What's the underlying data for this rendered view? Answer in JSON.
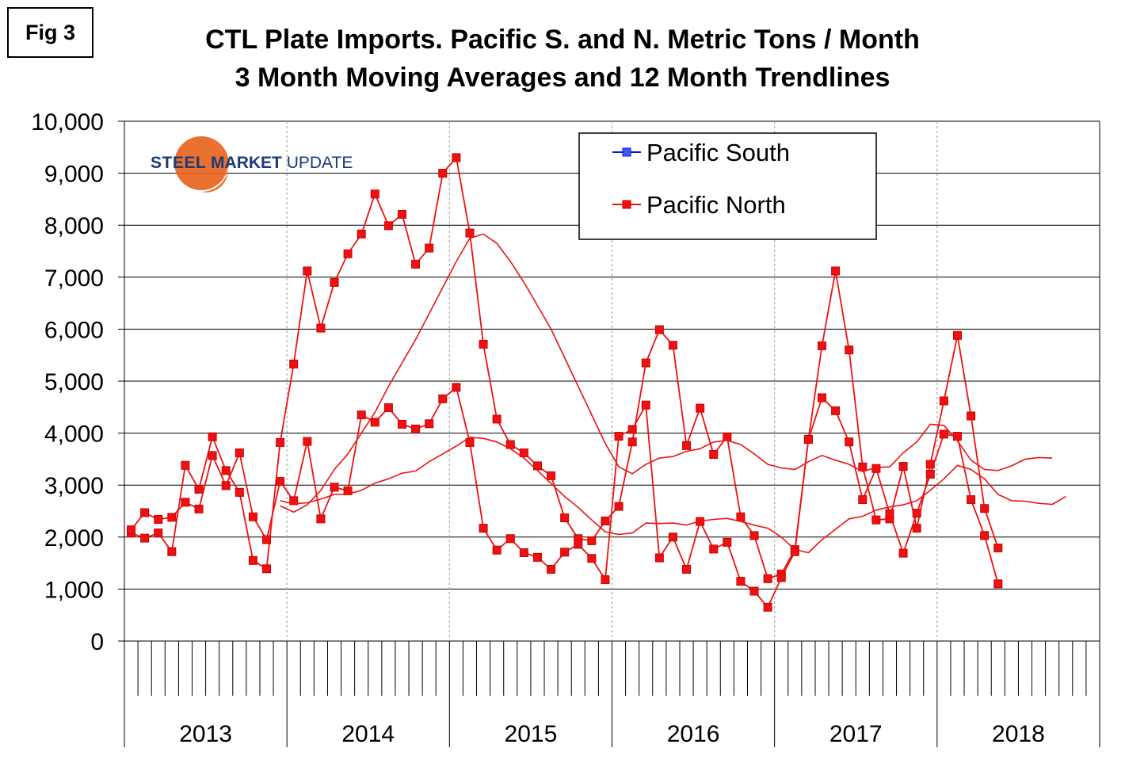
{
  "fig_label": "Fig 3",
  "title_line1": "CTL Plate Imports. Pacific S. and N. Metric Tons / Month",
  "title_line2": "3 Month Moving Averages and 12 Month Trendlines",
  "logo": {
    "word1": "STEEL",
    "word2": "MARKET",
    "word3": "UPDATE"
  },
  "colors": {
    "south": "#1010e0",
    "north": "#ee1111",
    "south_marker": "#3b5bf0",
    "grid": "#000000"
  },
  "chart_data": {
    "type": "line",
    "title": "CTL Plate Imports. Pacific S. and N. Metric Tons / Month - 3 Month Moving Averages and 12 Month Trendlines",
    "xlabel": "",
    "ylabel": "",
    "ylim": [
      0,
      10000
    ],
    "y_ticks": [
      0,
      1000,
      2000,
      3000,
      4000,
      5000,
      6000,
      7000,
      8000,
      9000,
      10000
    ],
    "y_tick_labels": [
      "0",
      "1,000",
      "2,000",
      "3,000",
      "4,000",
      "5,000",
      "6,000",
      "7,000",
      "8,000",
      "9,000",
      "10,000"
    ],
    "years": [
      "2013",
      "2014",
      "2015",
      "2016",
      "2017",
      "2018"
    ],
    "months_per_year": 12,
    "total_months": 72,
    "legend": [
      "Pacific South",
      "Pacific North"
    ],
    "series": [
      {
        "name": "Pacific South",
        "type": "3 month moving average",
        "start_month": 1,
        "values": [
          2080,
          1980,
          2080,
          1720,
          3380,
          2920,
          3930,
          3280,
          2860,
          1550,
          1390,
          3820,
          5330,
          7120,
          6020,
          6900,
          7450,
          7830,
          8600,
          7990,
          8210,
          7250,
          7560,
          9000,
          9300,
          7850,
          5710,
          4270,
          3780,
          3620,
          3370,
          3180,
          2370,
          1970,
          1930,
          2310,
          2590,
          3830,
          5350,
          5990,
          5690,
          3760,
          4480,
          3590,
          3930,
          2390,
          2030,
          1200,
          1290,
          1760,
          3880,
          5680,
          7120,
          5600,
          3350,
          2330,
          2350,
          3360,
          2170,
          3400,
          4620,
          5880,
          4330,
          2550,
          1790
        ]
      },
      {
        "name": "Pacific North",
        "type": "3 month moving average",
        "start_month": 1,
        "values": [
          2140,
          2470,
          2340,
          2380,
          2670,
          2540,
          3570,
          2990,
          3620,
          2390,
          1950,
          3070,
          2700,
          3840,
          2350,
          2960,
          2890,
          4350,
          4210,
          4490,
          4170,
          4080,
          4180,
          4660,
          4880,
          3820,
          2170,
          1750,
          1970,
          1700,
          1610,
          1380,
          1710,
          1860,
          1590,
          1180,
          3940,
          4070,
          4540,
          1600,
          2000,
          1380,
          2300,
          1770,
          1900,
          1150,
          960,
          650,
          1220,
          1720,
          3880,
          4680,
          4430,
          3830,
          2720,
          3320,
          2450,
          1690,
          2460,
          3210,
          3980,
          3940,
          2720,
          2030,
          1100
        ]
      },
      {
        "name": "Pacific South trendline",
        "type": "12 month trendline",
        "start_month": 12,
        "values": [
          2600,
          2480,
          2620,
          2900,
          3300,
          3600,
          4000,
          4400,
          4900,
          5350,
          5800,
          6300,
          6800,
          7300,
          7750,
          7830,
          7650,
          7300,
          6900,
          6450,
          6000,
          5450,
          4900,
          4350,
          3800,
          3350,
          3220,
          3400,
          3520,
          3550,
          3650,
          3700,
          3830,
          3860,
          3780,
          3600,
          3400,
          3330,
          3300,
          3450,
          3570,
          3480,
          3400,
          3260,
          3340,
          3350,
          3620,
          3830,
          4170,
          4150,
          3850,
          3480,
          3300,
          3280,
          3370,
          3500,
          3530,
          3520
        ]
      },
      {
        "name": "Pacific North trendline",
        "type": "12 month trendline",
        "start_month": 12,
        "values": [
          2700,
          2640,
          2660,
          2730,
          2820,
          2830,
          2900,
          3040,
          3120,
          3230,
          3270,
          3450,
          3600,
          3750,
          3920,
          3900,
          3830,
          3700,
          3520,
          3280,
          3030,
          2780,
          2570,
          2330,
          2100,
          2050,
          2080,
          2270,
          2260,
          2270,
          2230,
          2310,
          2340,
          2360,
          2300,
          2230,
          2170,
          2000,
          1760,
          1700,
          1950,
          2150,
          2350,
          2400,
          2520,
          2580,
          2620,
          2700,
          2900,
          3120,
          3380,
          3300,
          3120,
          2820,
          2700,
          2690,
          2650,
          2630,
          2780
        ]
      }
    ]
  }
}
